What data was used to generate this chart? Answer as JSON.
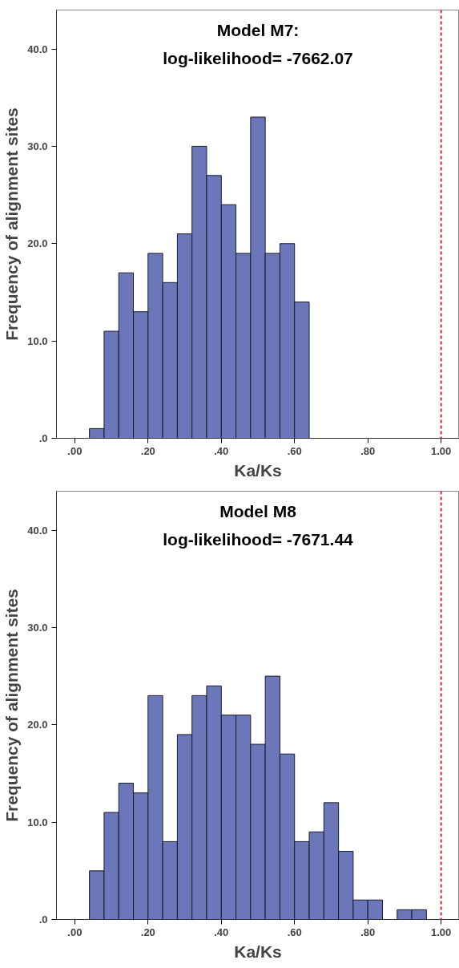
{
  "chart_data": [
    {
      "type": "histogram",
      "title": "Model M7:\nlog-likelihood= -7662.07",
      "xlabel": "Ka/Ks",
      "ylabel": "Frequency of alignment sites",
      "bins": [
        0.04,
        0.08,
        0.12,
        0.16,
        0.2,
        0.24,
        0.28,
        0.32,
        0.36,
        0.4,
        0.44,
        0.48,
        0.52,
        0.56,
        0.6,
        0.64
      ],
      "values": [
        1,
        11,
        17,
        13,
        19,
        16,
        21,
        30,
        27,
        24,
        19,
        33,
        19,
        20,
        14
      ],
      "color": "#6b77b8",
      "xlim": [
        -0.05,
        1.05
      ],
      "ylim": [
        0,
        44
      ],
      "xticks": [
        {
          "value": 0,
          "label": ".00"
        },
        {
          "value": 0.2,
          "label": ".20"
        },
        {
          "value": 0.4,
          "label": ".40"
        },
        {
          "value": 0.6,
          "label": ".60"
        },
        {
          "value": 0.8,
          "label": ".80"
        },
        {
          "value": 1,
          "label": "1.00"
        }
      ],
      "yticks": [
        {
          "value": 0,
          "label": ".0"
        },
        {
          "value": 10,
          "label": "10.0"
        },
        {
          "value": 20,
          "label": "20.0"
        },
        {
          "value": 30,
          "label": "30.0"
        },
        {
          "value": 40,
          "label": "40.0"
        }
      ],
      "ref_lines": [
        {
          "axis": "x",
          "value": 1,
          "color": "#e8202a",
          "line_style": "dashed"
        }
      ],
      "grid": false
    },
    {
      "type": "histogram",
      "title": "Model M8\nlog-likelihood= -7671.44",
      "xlabel": "Ka/Ks",
      "ylabel": "Frequency of alignment sites",
      "bins": [
        0.04,
        0.08,
        0.12,
        0.16,
        0.2,
        0.24,
        0.28,
        0.32,
        0.36,
        0.4,
        0.44,
        0.48,
        0.52,
        0.56,
        0.6,
        0.64,
        0.68,
        0.72,
        0.76,
        0.8,
        0.84,
        0.88,
        0.92,
        0.96
      ],
      "values": [
        5,
        11,
        14,
        13,
        23,
        8,
        19,
        23,
        24,
        21,
        21,
        18,
        25,
        17,
        8,
        9,
        12,
        7,
        2,
        2,
        0,
        1,
        1
      ],
      "color": "#6b77b8",
      "xlim": [
        -0.05,
        1.05
      ],
      "ylim": [
        0,
        44
      ],
      "xticks": [
        {
          "value": 0,
          "label": ".00"
        },
        {
          "value": 0.2,
          "label": ".20"
        },
        {
          "value": 0.4,
          "label": ".40"
        },
        {
          "value": 0.6,
          "label": ".60"
        },
        {
          "value": 0.8,
          "label": ".80"
        },
        {
          "value": 1,
          "label": "1.00"
        }
      ],
      "yticks": [
        {
          "value": 0,
          "label": ".0"
        },
        {
          "value": 10,
          "label": "10.0"
        },
        {
          "value": 20,
          "label": "20.0"
        },
        {
          "value": 30,
          "label": "30.0"
        },
        {
          "value": 40,
          "label": "40.0"
        }
      ],
      "ref_lines": [
        {
          "axis": "x",
          "value": 1,
          "color": "#e8202a",
          "line_style": "dashed"
        }
      ],
      "grid": false
    }
  ]
}
